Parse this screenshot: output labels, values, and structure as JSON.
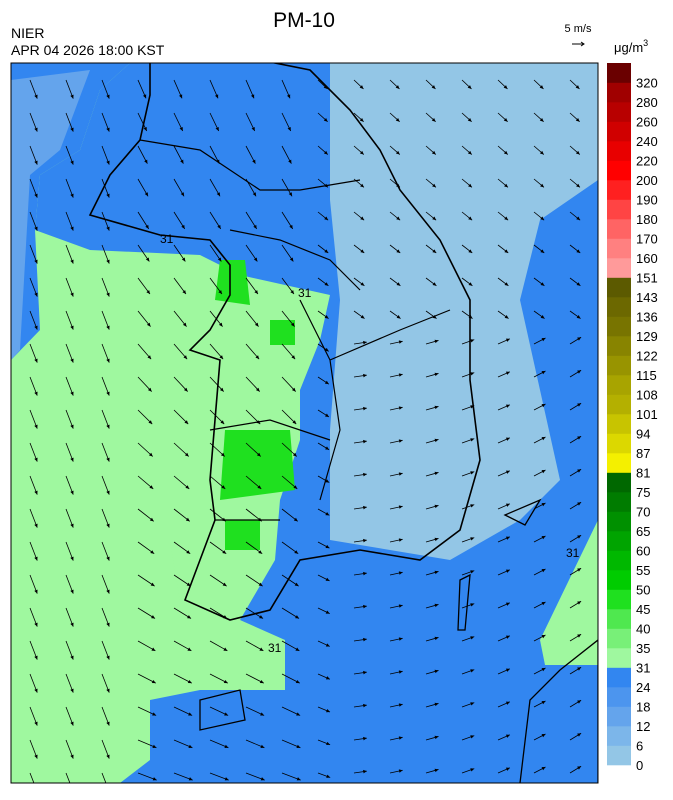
{
  "header": {
    "title": "PM-10",
    "org": "NIER",
    "timestamp": "APR 04 2026 18:00 KST"
  },
  "wind_legend": {
    "label": "5 m/s"
  },
  "unit": {
    "base": "μg/m",
    "superscript": "3"
  },
  "colorbar": {
    "levels": [
      0,
      6,
      12,
      18,
      24,
      31,
      35,
      40,
      45,
      50,
      55,
      60,
      65,
      70,
      75,
      81,
      87,
      94,
      101,
      108,
      115,
      122,
      129,
      136,
      143,
      151,
      160,
      170,
      180,
      190,
      200,
      220,
      240,
      260,
      280,
      320
    ],
    "colors": [
      "#93c6e6",
      "#7cb6ea",
      "#64a4ec",
      "#4c95ee",
      "#3286f0",
      "#9ff89f",
      "#78f078",
      "#4fe84f",
      "#1fe01f",
      "#00cc00",
      "#00b800",
      "#00a400",
      "#009000",
      "#007c00",
      "#006800",
      "#f4f000",
      "#dcd800",
      "#c8c400",
      "#b4b000",
      "#a8a400",
      "#989400",
      "#888400",
      "#787400",
      "#6c6800",
      "#5c5a00",
      "#ff9a9a",
      "#ff8080",
      "#ff6464",
      "#ff4444",
      "#ff2020",
      "#ff0000",
      "#e80000",
      "#d00000",
      "#b80000",
      "#a00000",
      "#6a0000"
    ]
  },
  "map": {
    "contour_labels": [
      "31",
      "31",
      "31",
      "31"
    ]
  }
}
